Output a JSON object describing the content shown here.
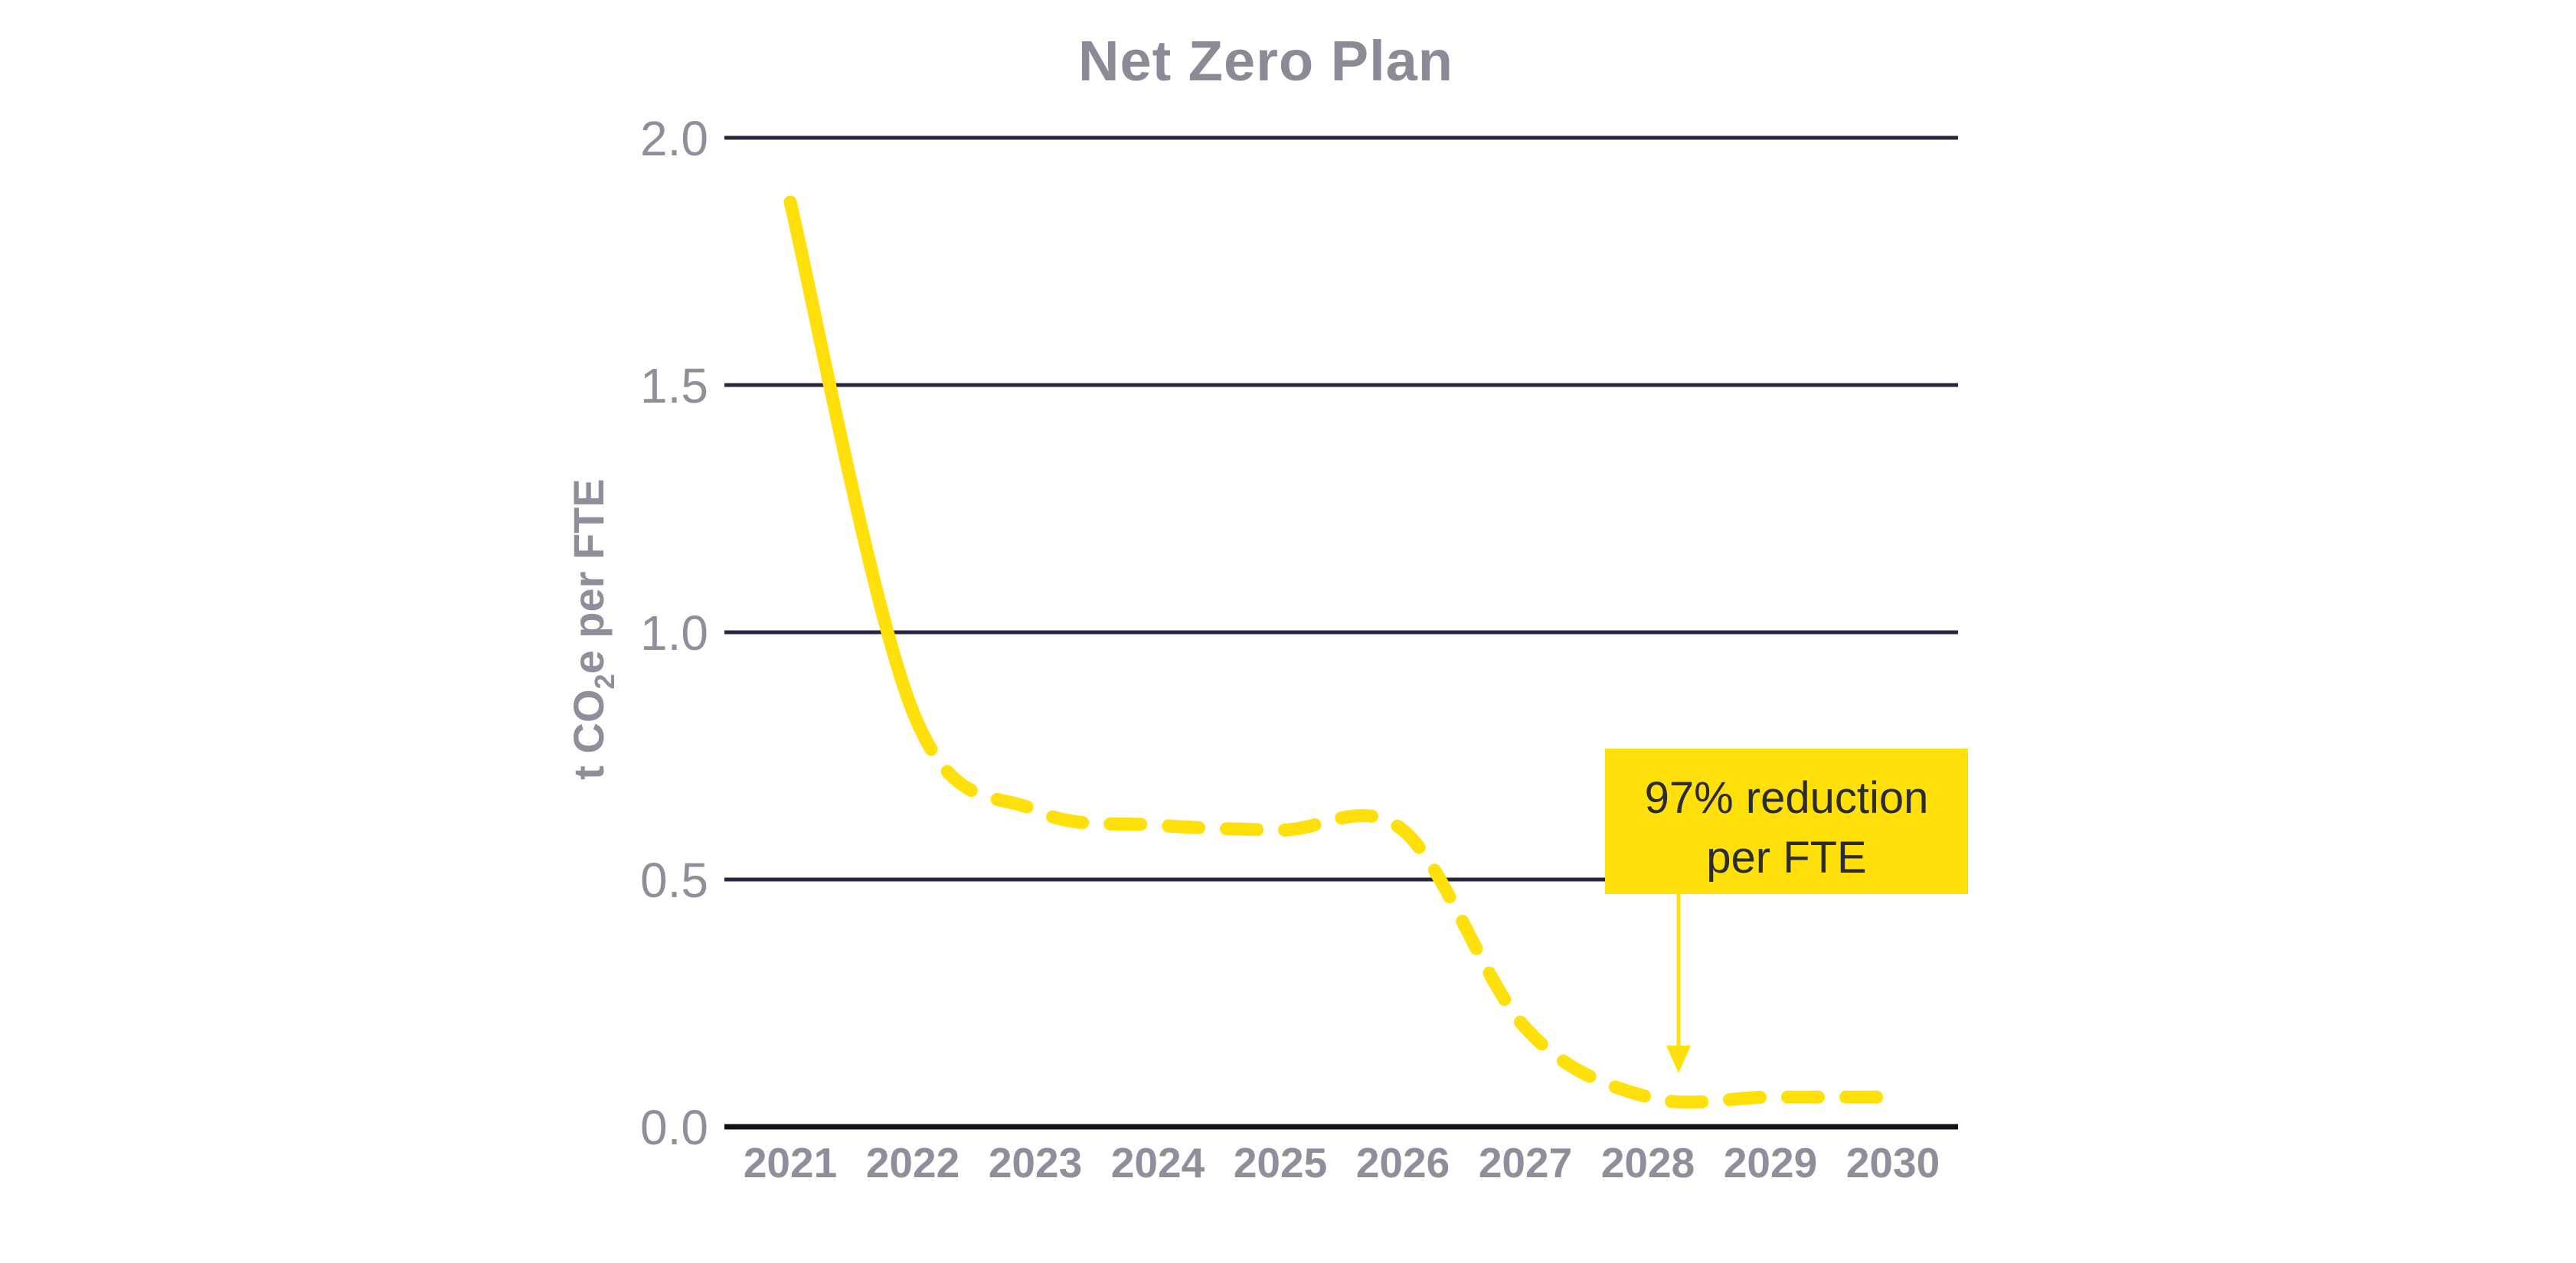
{
  "page": {
    "background_color": "#ffffff"
  },
  "chart": {
    "title": "Net Zero Plan",
    "y_axis_title": {
      "pre": "t CO",
      "sub": "2",
      "post": "e per FTE"
    },
    "annotation": {
      "line1": "97% reduction",
      "line2": "per FTE"
    },
    "colors": {
      "line": "#FFE00A",
      "annotation_box": "#FFE00A",
      "annotation_text": "#2B2B33",
      "gridline": "#262840",
      "axis_line": "#101118",
      "tick_label": "#8F8F9C",
      "title_text": "#8B8B98",
      "background": "#FFFFFF"
    }
  },
  "chart_data": {
    "type": "line",
    "title": "Net Zero Plan",
    "xlabel": "",
    "ylabel": "t CO2e per FTE",
    "x": [
      2021,
      2022,
      2023,
      2024,
      2025,
      2026,
      2027,
      2028,
      2029,
      2030
    ],
    "series": [
      {
        "name": "t CO2e per FTE",
        "values": [
          1.87,
          0.84,
          0.64,
          0.61,
          0.6,
          0.6,
          0.2,
          0.06,
          0.06,
          0.06
        ],
        "color": "#FFE00A",
        "style": "solid from 2021 to 2022, dashed from 2022 to 2030"
      }
    ],
    "ylim": [
      0,
      2
    ],
    "yticks": [
      0,
      0.5,
      1,
      1.5,
      2
    ],
    "ytick_labels": [
      "0.0",
      "0.5",
      "1.0",
      "1.5",
      "2.0"
    ],
    "grid": "horizontal",
    "legend": "none",
    "annotation": {
      "text": "97% reduction per FTE",
      "arrow_target_x": 2028,
      "arrow_target_value": 0.06
    }
  }
}
